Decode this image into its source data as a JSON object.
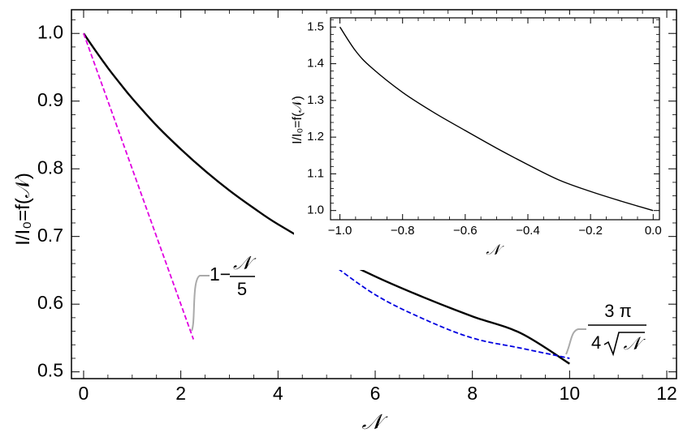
{
  "chart_data": [
    {
      "type": "line",
      "xlabel": "𝒩",
      "ylabel": "I/I₀=f(𝒩)",
      "xlim": [
        -0.25,
        12.2
      ],
      "ylim": [
        0.49,
        1.035
      ],
      "x_ticks": [
        "0",
        "2",
        "4",
        "6",
        "8",
        "10",
        "12"
      ],
      "y_ticks": [
        "0.5",
        "0.6",
        "0.7",
        "0.8",
        "0.9",
        "1.0"
      ],
      "series": [
        {
          "color": "#000000",
          "style": "solid",
          "x": [
            0,
            0.25,
            0.5,
            0.75,
            1,
            1.5,
            2,
            2.5,
            3,
            3.5,
            4,
            5,
            6,
            7,
            8,
            9,
            10
          ],
          "y": [
            1.0,
            0.974,
            0.949,
            0.926,
            0.904,
            0.864,
            0.829,
            0.797,
            0.768,
            0.742,
            0.718,
            0.677,
            0.641,
            0.61,
            0.582,
            0.557,
            0.512
          ]
        },
        {
          "color": "#e000e0",
          "style": "dashed",
          "x": [
            0,
            2.26
          ],
          "y": [
            1.0,
            0.548
          ]
        },
        {
          "color": "#0000e0",
          "style": "dashed",
          "x": [
            5,
            6,
            7,
            8,
            9,
            10
          ],
          "y": [
            0.665,
            0.614,
            0.578,
            0.55,
            0.535,
            0.52
          ]
        }
      ],
      "annotations": [
        {
          "kind": "linear",
          "prefix": "1−",
          "num": "𝒩",
          "den": "5"
        },
        {
          "kind": "asymptotic",
          "num": "3 π",
          "den_pre": "4",
          "den_rad": "𝒩"
        }
      ]
    },
    {
      "type": "line",
      "xlabel": "𝒩",
      "ylabel": "I/I₀=f(𝒩)",
      "xlim": [
        -1.03,
        0.02
      ],
      "ylim": [
        0.975,
        1.525
      ],
      "x_ticks": [
        "−1.0",
        "−0.8",
        "−0.6",
        "−0.4",
        "−0.2",
        "0.0"
      ],
      "y_ticks": [
        "1.0",
        "1.1",
        "1.2",
        "1.3",
        "1.4",
        "1.5"
      ],
      "series": [
        {
          "color": "#000000",
          "style": "solid",
          "x": [
            -1.0,
            -0.95,
            -0.9,
            -0.8,
            -0.7,
            -0.6,
            -0.5,
            -0.4,
            -0.3,
            -0.2,
            -0.1,
            0.0
          ],
          "y": [
            1.5,
            1.435,
            1.39,
            1.322,
            1.267,
            1.218,
            1.17,
            1.125,
            1.083,
            1.052,
            1.025,
            1.0
          ]
        }
      ]
    }
  ]
}
